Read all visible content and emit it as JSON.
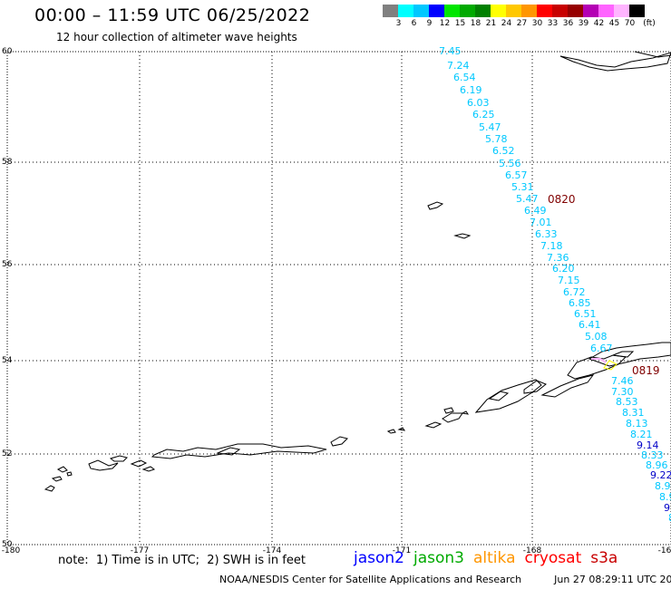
{
  "header": {
    "title": "00:00 – 11:59 UTC 06/25/2022",
    "subtitle": "12 hour collection of altimeter wave heights"
  },
  "legend": {
    "colors": [
      "#808080",
      "#00ffff",
      "#00c8ff",
      "#0000ff",
      "#00e600",
      "#00aa00",
      "#008000",
      "#ffff00",
      "#ffc800",
      "#ff9600",
      "#ff0000",
      "#c80000",
      "#960000",
      "#b400b4",
      "#ff64ff",
      "#ffb4ff",
      "#000000"
    ],
    "labels": [
      "3",
      "6",
      "9",
      "12",
      "15",
      "18",
      "21",
      "24",
      "27",
      "30",
      "33",
      "36",
      "39",
      "42",
      "45",
      "70",
      "(ft)"
    ]
  },
  "axes": {
    "y_ticks": [
      "60",
      "58",
      "56",
      "54",
      "52",
      "50"
    ],
    "x_ticks": [
      "-180",
      "-177",
      "-174",
      "-171",
      "-168",
      "-16"
    ]
  },
  "track": {
    "color": "#00c8ff",
    "values": [
      "7.45",
      "7.24",
      "6.54",
      "6.19",
      "6.03",
      "6.25",
      "5.47",
      "5.78",
      "6.52",
      "5.56",
      "6.57",
      "5.31",
      "5.47",
      "6.49",
      "7.01",
      "6.33",
      "7.18",
      "7.36",
      "6.20",
      "7.15",
      "6.72",
      "6.85",
      "6.51",
      "6.41",
      "5.08",
      "6.67",
      "7.46",
      "7.30",
      "8.53",
      "8.31",
      "8.13",
      "8.21",
      "9.14",
      "8.33",
      "8.96",
      "9.22",
      "8.9",
      "8.9",
      "9",
      "8"
    ],
    "colors": [
      "#00c8ff",
      "#00c8ff",
      "#00c8ff",
      "#00c8ff",
      "#00c8ff",
      "#00c8ff",
      "#00c8ff",
      "#00c8ff",
      "#00c8ff",
      "#00c8ff",
      "#00c8ff",
      "#00c8ff",
      "#00c8ff",
      "#00c8ff",
      "#00c8ff",
      "#00c8ff",
      "#00c8ff",
      "#00c8ff",
      "#00c8ff",
      "#00c8ff",
      "#00c8ff",
      "#00c8ff",
      "#00c8ff",
      "#00c8ff",
      "#00c8ff",
      "#00c8ff",
      "#00c8ff",
      "#00c8ff",
      "#00c8ff",
      "#00c8ff",
      "#00c8ff",
      "#00c8ff",
      "#0000c8",
      "#00c8ff",
      "#00c8ff",
      "#0000c8",
      "#00c8ff",
      "#00c8ff",
      "#0000c8",
      "#00c8ff"
    ],
    "time_labels": [
      "0820",
      "0819"
    ],
    "time_color": "#800000"
  },
  "note": "note:  1) Time is in UTC;  2) SWH is in feet",
  "satellites": [
    {
      "name": "jason2",
      "color": "#0000ff"
    },
    {
      "name": "jason3",
      "color": "#00aa00"
    },
    {
      "name": "altika",
      "color": "#ff9600"
    },
    {
      "name": "cryosat",
      "color": "#ff0000"
    },
    {
      "name": "s3a",
      "color": "#c80000"
    }
  ],
  "footer": {
    "source": "NOAA/NESDIS Center for Satellite Applications and Research",
    "timestamp": "Jun 27 08:29:11 UTC 2022"
  }
}
